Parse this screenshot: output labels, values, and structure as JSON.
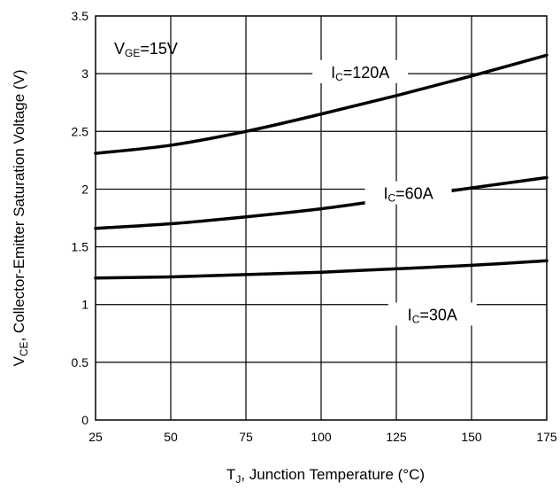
{
  "chart_data": {
    "type": "line",
    "xlabel_parts": [
      "T",
      "J",
      ", Junction Temperature (°C)"
    ],
    "ylabel_parts": [
      "V",
      "CE",
      ", Collector-Emitter Saturation Voltage (V)"
    ],
    "xlim": [
      25,
      175
    ],
    "ylim": [
      0,
      3.5
    ],
    "xticks": [
      25,
      50,
      75,
      100,
      125,
      150,
      175
    ],
    "yticks": [
      0,
      0.5,
      1,
      1.5,
      2,
      2.5,
      3,
      3.5
    ],
    "ytick_labels": [
      "0",
      "0.5",
      "1",
      "1.5",
      "2",
      "2.5",
      "3",
      "3.5"
    ],
    "grid": true,
    "condition": {
      "main": "V",
      "sub": "GE",
      "rest": "=15V"
    },
    "series": [
      {
        "label_main": "I",
        "label_sub": "C",
        "label_rest": "=120A",
        "x": [
          25,
          50,
          75,
          100,
          125,
          150,
          175
        ],
        "values": [
          2.31,
          2.38,
          2.5,
          2.65,
          2.81,
          2.98,
          3.16
        ]
      },
      {
        "label_main": "I",
        "label_sub": "C",
        "label_rest": "=60A",
        "x": [
          25,
          50,
          75,
          100,
          125,
          150,
          175
        ],
        "values": [
          1.66,
          1.7,
          1.76,
          1.83,
          1.92,
          2.01,
          2.1
        ]
      },
      {
        "label_main": "I",
        "label_sub": "C",
        "label_rest": "=30A",
        "x": [
          25,
          50,
          75,
          100,
          125,
          150,
          175
        ],
        "values": [
          1.23,
          1.24,
          1.26,
          1.28,
          1.31,
          1.34,
          1.38
        ]
      }
    ]
  }
}
